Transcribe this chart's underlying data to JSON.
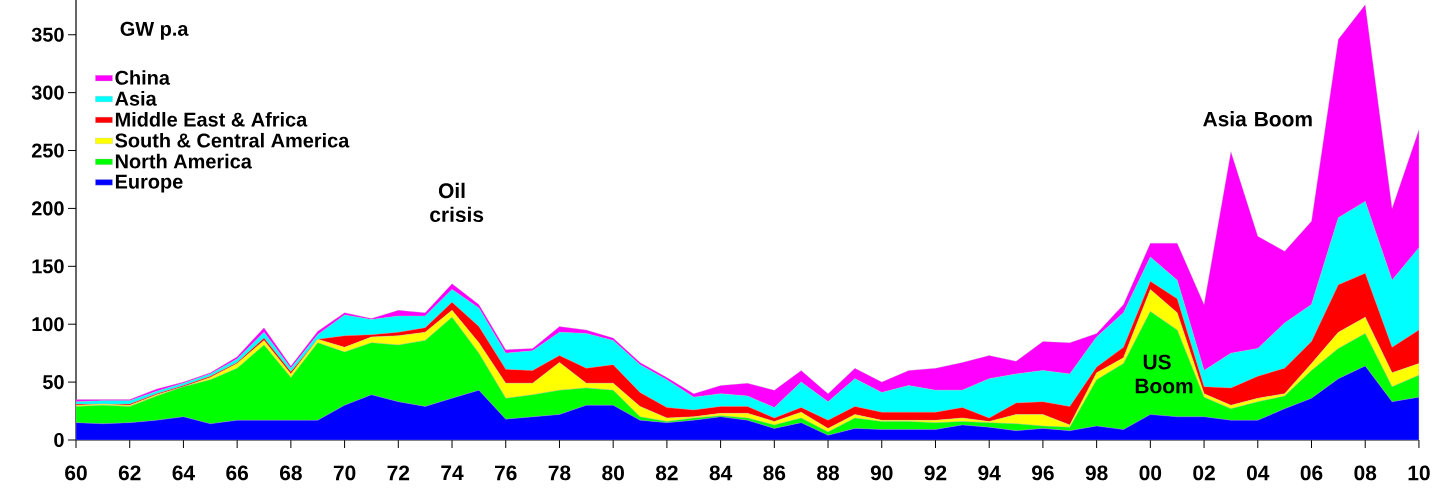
{
  "chart_data": {
    "type": "area",
    "stacked": true,
    "ylabel": "GW p.a",
    "legend": "top left",
    "x": [
      1960,
      1961,
      1962,
      1963,
      1964,
      1965,
      1966,
      1967,
      1968,
      1969,
      1970,
      1971,
      1972,
      1973,
      1974,
      1975,
      1976,
      1977,
      1978,
      1979,
      1980,
      1981,
      1982,
      1983,
      1984,
      1985,
      1986,
      1987,
      1988,
      1989,
      1990,
      1991,
      1992,
      1993,
      1994,
      1995,
      1996,
      1997,
      1998,
      1999,
      2000,
      2001,
      2002,
      2003,
      2004,
      2005,
      2006,
      2007,
      2008,
      2009,
      2010
    ],
    "series": [
      {
        "name": "Europe",
        "color": "#0000ff",
        "values": [
          15,
          14,
          15,
          17,
          20,
          14,
          17,
          17,
          17,
          17,
          30,
          39,
          33,
          29,
          36,
          43,
          18,
          20,
          22,
          30,
          30,
          17,
          15,
          17,
          20,
          17,
          10,
          15,
          4,
          10,
          9,
          9,
          9,
          13,
          11,
          8,
          10,
          8,
          12,
          9,
          22,
          20,
          20,
          17,
          17,
          27,
          36,
          53,
          64,
          33,
          37
        ]
      },
      {
        "name": "North America",
        "color": "#00ff00",
        "values": [
          14,
          16,
          14,
          21,
          26,
          38,
          45,
          65,
          37,
          67,
          46,
          45,
          49,
          57,
          70,
          32,
          18,
          19,
          21,
          15,
          13,
          3,
          1,
          2,
          1,
          2,
          3,
          4,
          3,
          9,
          7,
          7,
          6,
          3,
          4,
          6,
          2,
          3,
          40,
          57,
          89,
          75,
          17,
          10,
          16,
          11,
          24,
          26,
          28,
          13,
          19
        ]
      },
      {
        "name": "South & Central America",
        "color": "#ffff00",
        "values": [
          1,
          1,
          1,
          1,
          0,
          2,
          4,
          4,
          3,
          3,
          4,
          5,
          8,
          7,
          6,
          9,
          13,
          10,
          24,
          4,
          6,
          9,
          3,
          1,
          2,
          4,
          3,
          5,
          3,
          3,
          1,
          1,
          2,
          3,
          1,
          8,
          10,
          2,
          6,
          5,
          19,
          15,
          3,
          3,
          3,
          2,
          6,
          14,
          14,
          12,
          10
        ]
      },
      {
        "name": "Middle East & Africa",
        "color": "#ff0000",
        "values": [
          1,
          0,
          1,
          1,
          1,
          1,
          1,
          2,
          2,
          0,
          10,
          2,
          3,
          4,
          7,
          14,
          12,
          11,
          6,
          13,
          16,
          12,
          9,
          6,
          6,
          6,
          3,
          4,
          7,
          7,
          7,
          7,
          7,
          9,
          3,
          10,
          11,
          16,
          5,
          9,
          7,
          12,
          6,
          15,
          19,
          22,
          19,
          41,
          38,
          22,
          29
        ]
      },
      {
        "name": "Asia",
        "color": "#00ffff",
        "values": [
          2,
          3,
          3,
          2,
          2,
          2,
          3,
          5,
          3,
          4,
          18,
          13,
          14,
          10,
          11,
          16,
          14,
          17,
          20,
          30,
          21,
          24,
          24,
          11,
          11,
          9,
          9,
          22,
          16,
          24,
          17,
          23,
          19,
          15,
          34,
          25,
          27,
          28,
          26,
          30,
          21,
          16,
          14,
          30,
          24,
          39,
          32,
          58,
          62,
          58,
          71
        ]
      },
      {
        "name": "China",
        "color": "#ff00ff",
        "values": [
          2,
          1,
          1,
          2,
          1,
          1,
          2,
          4,
          2,
          3,
          2,
          1,
          5,
          3,
          5,
          3,
          3,
          2,
          5,
          3,
          2,
          2,
          2,
          3,
          7,
          11,
          15,
          10,
          7,
          9,
          9,
          13,
          19,
          24,
          20,
          11,
          25,
          27,
          3,
          7,
          12,
          32,
          57,
          174,
          97,
          62,
          72,
          154,
          170,
          62,
          102
        ]
      }
    ],
    "xlim": [
      1960,
      2010
    ],
    "xticks": [
      {
        "value": 1960,
        "label": "60"
      },
      {
        "value": 1962,
        "label": "62"
      },
      {
        "value": 1964,
        "label": "64"
      },
      {
        "value": 1966,
        "label": "66"
      },
      {
        "value": 1968,
        "label": "68"
      },
      {
        "value": 1970,
        "label": "70"
      },
      {
        "value": 1972,
        "label": "72"
      },
      {
        "value": 1974,
        "label": "74"
      },
      {
        "value": 1976,
        "label": "76"
      },
      {
        "value": 1978,
        "label": "78"
      },
      {
        "value": 1980,
        "label": "80"
      },
      {
        "value": 1982,
        "label": "82"
      },
      {
        "value": 1984,
        "label": "84"
      },
      {
        "value": 1986,
        "label": "86"
      },
      {
        "value": 1988,
        "label": "88"
      },
      {
        "value": 1990,
        "label": "90"
      },
      {
        "value": 1992,
        "label": "92"
      },
      {
        "value": 1994,
        "label": "94"
      },
      {
        "value": 1996,
        "label": "96"
      },
      {
        "value": 1998,
        "label": "98"
      },
      {
        "value": 2000,
        "label": "00"
      },
      {
        "value": 2002,
        "label": "02"
      },
      {
        "value": 2004,
        "label": "04"
      },
      {
        "value": 2006,
        "label": "06"
      },
      {
        "value": 2008,
        "label": "08"
      },
      {
        "value": 2010,
        "label": "10"
      }
    ],
    "ylim": [
      0,
      380
    ],
    "yticks": [
      0,
      50,
      100,
      150,
      200,
      250,
      300,
      350
    ],
    "annotations": [
      "Oil crisis",
      "US Boom",
      "Asia Boom"
    ]
  }
}
